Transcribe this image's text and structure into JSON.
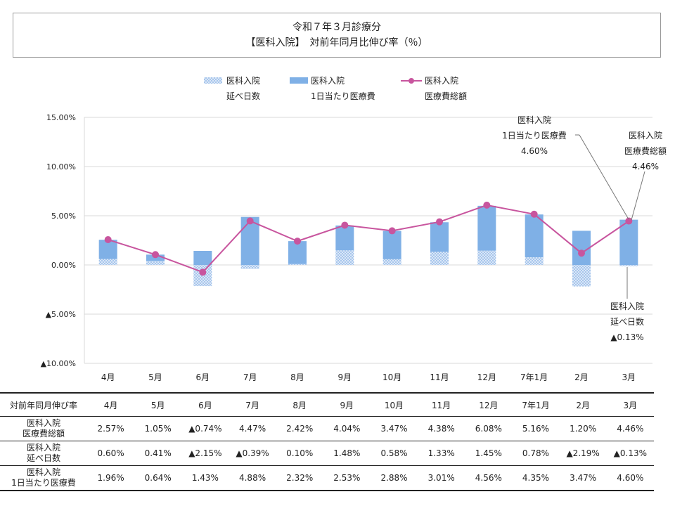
{
  "header": {
    "line1": "令和７年３月診療分",
    "line2": "【医科入院】　対前年同月比伸び率（％）"
  },
  "legend": {
    "days_l1": "医科入院",
    "days_l2": "延べ日数",
    "perday_l1": "医科入院",
    "perday_l2": "1日当たり医療費",
    "total_l1": "医科入院",
    "total_l2": "医療費総額"
  },
  "annotations": {
    "perday": {
      "l1": "医科入院",
      "l2": "1日当たり医療費",
      "l3": "4.60%"
    },
    "total": {
      "l1": "医科入院",
      "l2": "医療費総額",
      "l3": "4.46%"
    },
    "days": {
      "l1": "医科入院",
      "l2": "延べ日数",
      "l3": "▲0.13%"
    }
  },
  "colors": {
    "bar": "#7fb0e6",
    "days_pattern": "#a8c6ec",
    "line": "#c8559e",
    "grid": "#d9d9d9",
    "axis": "#999999"
  },
  "chart_data": {
    "type": "bar",
    "categories": [
      "4月",
      "5月",
      "6月",
      "7月",
      "8月",
      "9月",
      "10月",
      "11月",
      "12月",
      "7年1月",
      "2月",
      "3月"
    ],
    "ylim": [
      -10,
      15
    ],
    "yticks": [
      -10,
      -5,
      0,
      5,
      10,
      15
    ],
    "ytick_labels": [
      "▲10.00%",
      "▲5.00%",
      "0.00%",
      "5.00%",
      "10.00%",
      "15.00%"
    ],
    "grid": true,
    "legend_position": "top",
    "series": [
      {
        "name": "医科入院 延べ日数",
        "kind": "stacked-bar-pattern",
        "values": [
          0.6,
          0.41,
          -2.15,
          -0.39,
          0.1,
          1.48,
          0.58,
          1.33,
          1.45,
          0.78,
          -2.19,
          -0.13
        ]
      },
      {
        "name": "医科入院 1日当たり医療費",
        "kind": "stacked-bar",
        "values": [
          1.96,
          0.64,
          1.43,
          4.88,
          2.32,
          2.53,
          2.88,
          3.01,
          4.56,
          4.35,
          3.47,
          4.6
        ]
      },
      {
        "name": "医科入院 医療費総額",
        "kind": "line",
        "values": [
          2.57,
          1.05,
          -0.74,
          4.47,
          2.42,
          4.04,
          3.47,
          4.38,
          6.08,
          5.16,
          1.2,
          4.46
        ]
      }
    ]
  },
  "table": {
    "header_label": "対前年同月伸び率",
    "months": [
      "4月",
      "5月",
      "6月",
      "7月",
      "8月",
      "9月",
      "10月",
      "11月",
      "12月",
      "7年1月",
      "2月",
      "3月"
    ],
    "rows": [
      {
        "l1": "医科入院",
        "l2": "医療費総額",
        "values": [
          "2.57%",
          "1.05%",
          "▲0.74%",
          "4.47%",
          "2.42%",
          "4.04%",
          "3.47%",
          "4.38%",
          "6.08%",
          "5.16%",
          "1.20%",
          "4.46%"
        ]
      },
      {
        "l1": "医科入院",
        "l2": "延べ日数",
        "values": [
          "0.60%",
          "0.41%",
          "▲2.15%",
          "▲0.39%",
          "0.10%",
          "1.48%",
          "0.58%",
          "1.33%",
          "1.45%",
          "0.78%",
          "▲2.19%",
          "▲0.13%"
        ]
      },
      {
        "l1": "医科入院",
        "l2": "1日当たり医療費",
        "values": [
          "1.96%",
          "0.64%",
          "1.43%",
          "4.88%",
          "2.32%",
          "2.53%",
          "2.88%",
          "3.01%",
          "4.56%",
          "4.35%",
          "3.47%",
          "4.60%"
        ]
      }
    ]
  }
}
